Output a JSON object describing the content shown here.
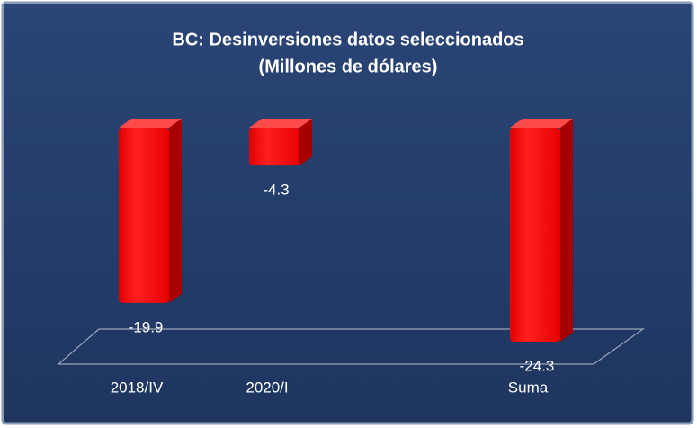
{
  "chart_data": {
    "type": "bar3d",
    "title": "BC: Desinversiones datos seleccionados",
    "subtitle": "(Millones de dólares)",
    "categories": [
      "2018/IV",
      "2020/I",
      null,
      "Suma"
    ],
    "values": [
      -19.9,
      -4.3,
      null,
      -24.3
    ],
    "color": "#ff0000"
  }
}
